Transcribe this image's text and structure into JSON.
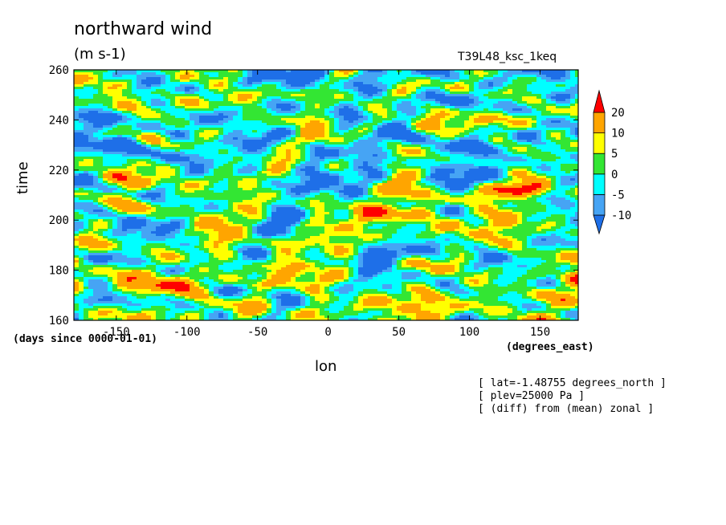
{
  "chart_data": {
    "type": "heatmap",
    "title": "northward wind",
    "units": "(m s-1)",
    "run_label": "T39L48_ksc_1keq",
    "xlabel": "lon",
    "x_units": "(degrees_east)",
    "ylabel": "time",
    "y_units": "(days since 0000-01-01)",
    "xlim": [
      -180,
      177
    ],
    "ylim": [
      160,
      260
    ],
    "x_ticks": [
      -150,
      -100,
      -50,
      0,
      50,
      100,
      150
    ],
    "y_ticks": [
      160,
      180,
      200,
      220,
      240,
      260
    ],
    "colorbar": {
      "levels": [
        -10,
        -5,
        0,
        5,
        10,
        20
      ],
      "level_labels": [
        "-10",
        "-5",
        "0",
        "5",
        "10",
        "20"
      ],
      "colors": [
        "#1e6fe8",
        "#46a4f4",
        "#00ffff",
        "#33e633",
        "#ffff00",
        "#ffa500",
        "#ff0000"
      ],
      "extend": "both"
    },
    "features": [
      {
        "lon": -155,
        "time": 255,
        "value": 15
      },
      {
        "lon": -50,
        "time": 249,
        "value": 12
      },
      {
        "lon": -145,
        "time": 245,
        "value": 12
      },
      {
        "lon": 125,
        "time": 240,
        "value": 12
      },
      {
        "lon": 135,
        "time": 212,
        "value": 20
      },
      {
        "lon": -95,
        "time": 215,
        "value": 15
      },
      {
        "lon": 60,
        "time": 203,
        "value": 20
      },
      {
        "lon": 170,
        "time": 178,
        "value": 15
      },
      {
        "lon": -120,
        "time": 174,
        "value": 12
      },
      {
        "lon": -50,
        "time": 175,
        "value": 10
      },
      {
        "lon": 100,
        "time": 248,
        "value": -10
      },
      {
        "lon": 170,
        "time": 240,
        "value": -10
      },
      {
        "lon": -20,
        "time": 235,
        "value": -10
      },
      {
        "lon": -150,
        "time": 230,
        "value": -10
      },
      {
        "lon": 100,
        "time": 205,
        "value": -10
      },
      {
        "lon": -35,
        "time": 195,
        "value": -8
      },
      {
        "lon": -150,
        "time": 168,
        "value": -8
      },
      {
        "lon": 40,
        "time": 186,
        "value": -8
      }
    ],
    "annotations": [
      "[ lat=-1.48755 degrees_north ]",
      "[ plev=25000 Pa ]",
      "[ (diff) from (mean) zonal ]"
    ]
  }
}
